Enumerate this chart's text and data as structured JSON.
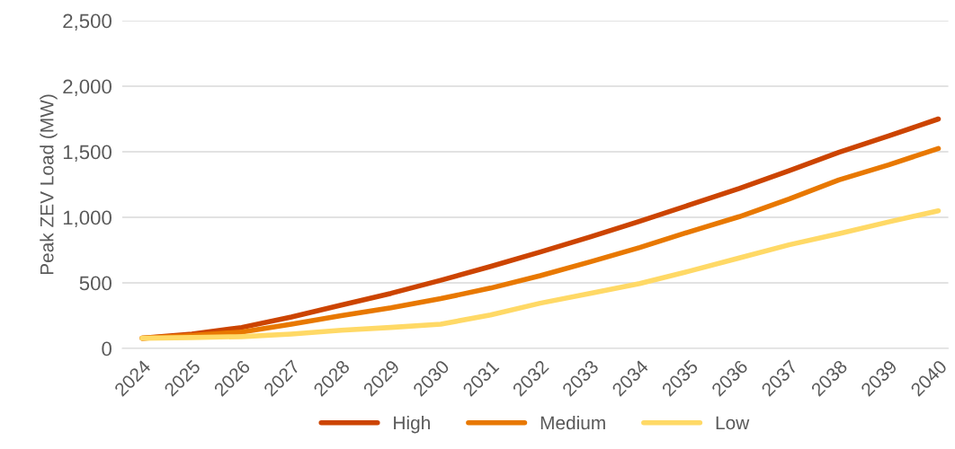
{
  "chart_data": {
    "type": "line",
    "ylabel": "Peak ZEV Load (MW)",
    "categories": [
      "2024",
      "2025",
      "2026",
      "2027",
      "2028",
      "2029",
      "2030",
      "2031",
      "2032",
      "2033",
      "2034",
      "2035",
      "2036",
      "2037",
      "2038",
      "2039",
      "2040"
    ],
    "series": [
      {
        "name": "High",
        "color": "#cc4400",
        "values": [
          78,
          110,
          160,
          240,
          330,
          420,
          520,
          625,
          735,
          850,
          970,
          1095,
          1220,
          1355,
          1495,
          1620,
          1750
        ]
      },
      {
        "name": "Medium",
        "color": "#e87800",
        "values": [
          78,
          100,
          125,
          185,
          250,
          310,
          380,
          460,
          555,
          660,
          770,
          890,
          1005,
          1140,
          1285,
          1400,
          1525
        ]
      },
      {
        "name": "Low",
        "color": "#ffd966",
        "values": [
          78,
          83,
          90,
          110,
          138,
          160,
          185,
          255,
          345,
          420,
          495,
          590,
          690,
          790,
          875,
          965,
          1050
        ]
      }
    ],
    "ylim": [
      0,
      2500
    ],
    "yticks": [
      {
        "value": 0,
        "label": "0"
      },
      {
        "value": 500,
        "label": "500"
      },
      {
        "value": 1000,
        "label": "1,000"
      },
      {
        "value": 1500,
        "label": "1,500"
      },
      {
        "value": 2000,
        "label": "2,000"
      },
      {
        "value": 2500,
        "label": "2,500"
      }
    ],
    "grid": "y",
    "legend": "bottom",
    "marker": "none",
    "line_style": "solid"
  }
}
